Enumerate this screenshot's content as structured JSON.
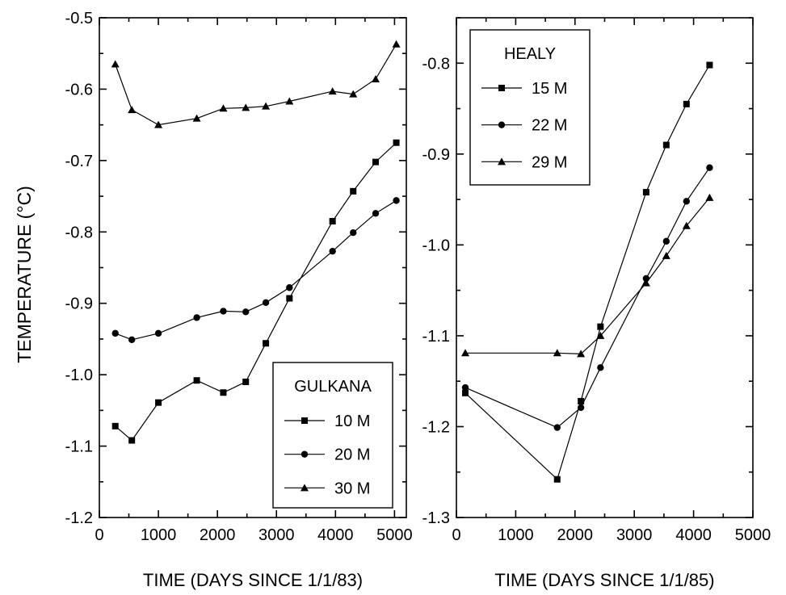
{
  "shared": {
    "ylabel": "TEMPERATURE (°C)"
  },
  "chart_data": [
    {
      "type": "line",
      "id": "gulkana",
      "xlabel": "TIME (DAYS SINCE 1/1/83)",
      "xlim": [
        0,
        5200
      ],
      "ylim": [
        -1.2,
        -0.5
      ],
      "xticks": [
        0,
        1000,
        2000,
        3000,
        4000,
        5000
      ],
      "xtick_labels": [
        "0",
        "1000",
        "2000",
        "3000",
        "4000",
        "5000"
      ],
      "yticks": [
        -1.2,
        -1.1,
        -1.0,
        -0.9,
        -0.8,
        -0.7,
        -0.6,
        -0.5
      ],
      "ytick_labels": [
        "-1.2",
        "-1.1",
        "-1.0",
        "-0.9",
        "-0.8",
        "-0.7",
        "-0.6",
        "-0.5"
      ],
      "grid": false,
      "legend": {
        "title": "GULKANA",
        "position": "bottom-right"
      },
      "series": [
        {
          "name": "10 M",
          "marker": "square",
          "x": [
            270,
            550,
            1000,
            1650,
            2100,
            2480,
            2820,
            3220,
            3950,
            4300,
            4680,
            5030
          ],
          "y": [
            -1.072,
            -1.092,
            -1.039,
            -1.008,
            -1.025,
            -1.01,
            -0.956,
            -0.893,
            -0.785,
            -0.743,
            -0.702,
            -0.675
          ]
        },
        {
          "name": "20 M",
          "marker": "circle",
          "x": [
            270,
            550,
            1000,
            1650,
            2100,
            2480,
            2820,
            3220,
            3950,
            4300,
            4680,
            5030
          ],
          "y": [
            -0.942,
            -0.951,
            -0.942,
            -0.92,
            -0.911,
            -0.912,
            -0.899,
            -0.878,
            -0.827,
            -0.801,
            -0.774,
            -0.756
          ]
        },
        {
          "name": "30 M",
          "marker": "triangle",
          "x": [
            270,
            550,
            1000,
            1650,
            2100,
            2480,
            2820,
            3220,
            3950,
            4300,
            4680,
            5030
          ],
          "y": [
            -0.565,
            -0.629,
            -0.65,
            -0.641,
            -0.627,
            -0.626,
            -0.624,
            -0.617,
            -0.603,
            -0.607,
            -0.586,
            -0.537
          ]
        }
      ]
    },
    {
      "type": "line",
      "id": "healy",
      "xlabel": "TIME (DAYS SINCE 1/1/85)",
      "xlim": [
        0,
        5000
      ],
      "ylim": [
        -1.3,
        -0.75
      ],
      "xticks": [
        0,
        1000,
        2000,
        3000,
        4000,
        5000
      ],
      "xtick_labels": [
        "0",
        "1000",
        "2000",
        "3000",
        "4000",
        "5000"
      ],
      "yticks": [
        -1.3,
        -1.2,
        -1.1,
        -1.0,
        -0.9,
        -0.8
      ],
      "ytick_labels": [
        "-1.3",
        "-1.2",
        "-1.1",
        "-1.0",
        "-0.9",
        "-0.8"
      ],
      "grid": false,
      "legend": {
        "title": "HEALY",
        "position": "top-left"
      },
      "series": [
        {
          "name": "15 M",
          "marker": "square",
          "x": [
            150,
            1700,
            2100,
            2430,
            3200,
            3540,
            3880,
            4270
          ],
          "y": [
            -1.163,
            -1.258,
            -1.172,
            -1.09,
            -0.942,
            -0.89,
            -0.845,
            -0.802
          ]
        },
        {
          "name": "22 M",
          "marker": "circle",
          "x": [
            150,
            1700,
            2100,
            2430,
            3200,
            3540,
            3880,
            4270
          ],
          "y": [
            -1.157,
            -1.201,
            -1.179,
            -1.135,
            -1.037,
            -0.996,
            -0.952,
            -0.915
          ]
        },
        {
          "name": "29 M",
          "marker": "triangle",
          "x": [
            150,
            1700,
            2100,
            2430,
            3200,
            3540,
            3880,
            4270
          ],
          "y": [
            -1.119,
            -1.119,
            -1.12,
            -1.1,
            -1.042,
            -1.012,
            -0.979,
            -0.948
          ]
        }
      ]
    }
  ]
}
